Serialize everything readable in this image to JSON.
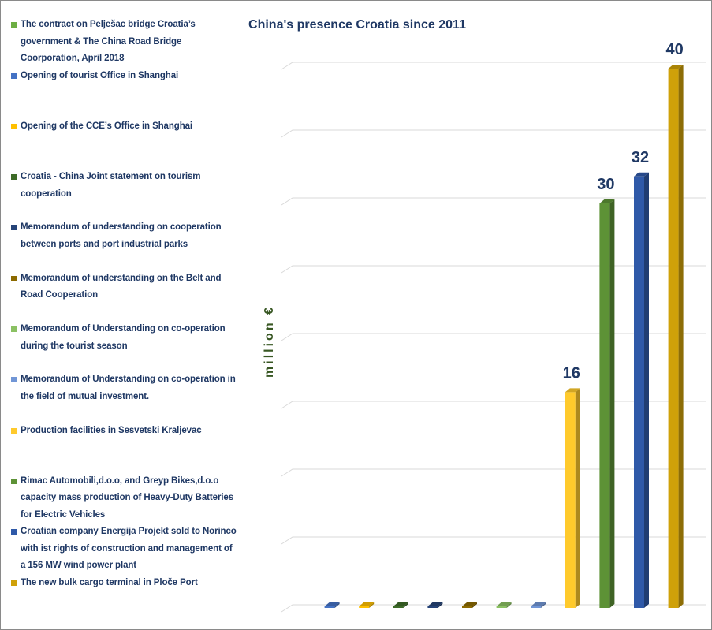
{
  "chart_data": {
    "type": "bar",
    "title": "China's presence Croatia since 2011",
    "xlabel": "",
    "ylabel": "million €",
    "ylim": [
      0,
      40
    ],
    "grid": true,
    "three_d": true,
    "data_labels": true,
    "legend_position": "left",
    "series": [
      {
        "name": "The contract  on Pelješac bridge   Croatia’s government & The China Road Bridge Coorporation, April 2018",
        "values": [
          null
        ],
        "color": "#6DAE43"
      },
      {
        "name": "Opening of tourist Office in Shanghai",
        "values": [
          0
        ],
        "color": "#4472C4"
      },
      {
        "name": "Opening of the CCE’s Office in Shanghai",
        "values": [
          0
        ],
        "color": "#FFC000"
      },
      {
        "name": "Croatia - China Joint statement on tourism cooperation",
        "values": [
          0
        ],
        "color": "#3D6B28"
      },
      {
        "name": "Memorandum of understanding on cooperation between ports and port industrial parks",
        "values": [
          0
        ],
        "color": "#264478"
      },
      {
        "name": "Memorandum of understanding on the Belt and Road Cooperation",
        "values": [
          0
        ],
        "color": "#8C6A00"
      },
      {
        "name": "Memorandum of Understanding on co-operation during the tourist season",
        "values": [
          0
        ],
        "color": "#8BC163"
      },
      {
        "name": "Memorandum of Understanding on co-operation in the field of mutual investment.",
        "values": [
          0
        ],
        "color": "#7196D6"
      },
      {
        "name": "Production facilities in Sesvetski Kraljevac",
        "values": [
          16
        ],
        "color": "#FFCA2C"
      },
      {
        "name": "Rimac Automobili,d.o.o, and Greyp Bikes,d.o.o capacity mass production of Heavy-Duty Batteries for  Electric Vehicles",
        "values": [
          30
        ],
        "color": "#5D9236"
      },
      {
        "name": "Croatian company Energija Projekt  sold to Norinco with ist  rights of construction and management of a 156 MW wind power plant",
        "values": [
          32
        ],
        "color": "#2F59A8"
      },
      {
        "name": "The new bulk cargo terminal in Ploče Port",
        "values": [
          40
        ],
        "color": "#CFA109"
      }
    ]
  }
}
